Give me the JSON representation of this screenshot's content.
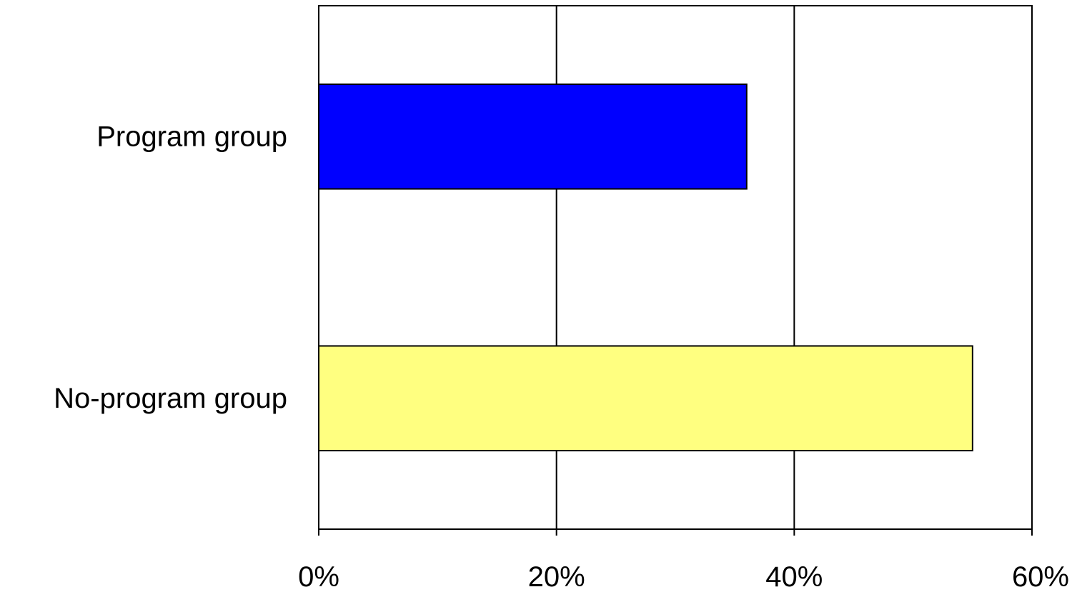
{
  "chart_data": {
    "type": "bar",
    "orientation": "horizontal",
    "categories": [
      "Program group",
      "No-program group"
    ],
    "values": [
      36,
      55
    ],
    "colors": [
      "#0000ff",
      "#ffff80"
    ],
    "xlim": [
      0,
      60
    ],
    "ticks": [
      0,
      20,
      40,
      60
    ],
    "tick_labels": [
      "0%",
      "20%",
      "40%",
      "60%"
    ],
    "grid": "vertical",
    "legend": "none"
  }
}
